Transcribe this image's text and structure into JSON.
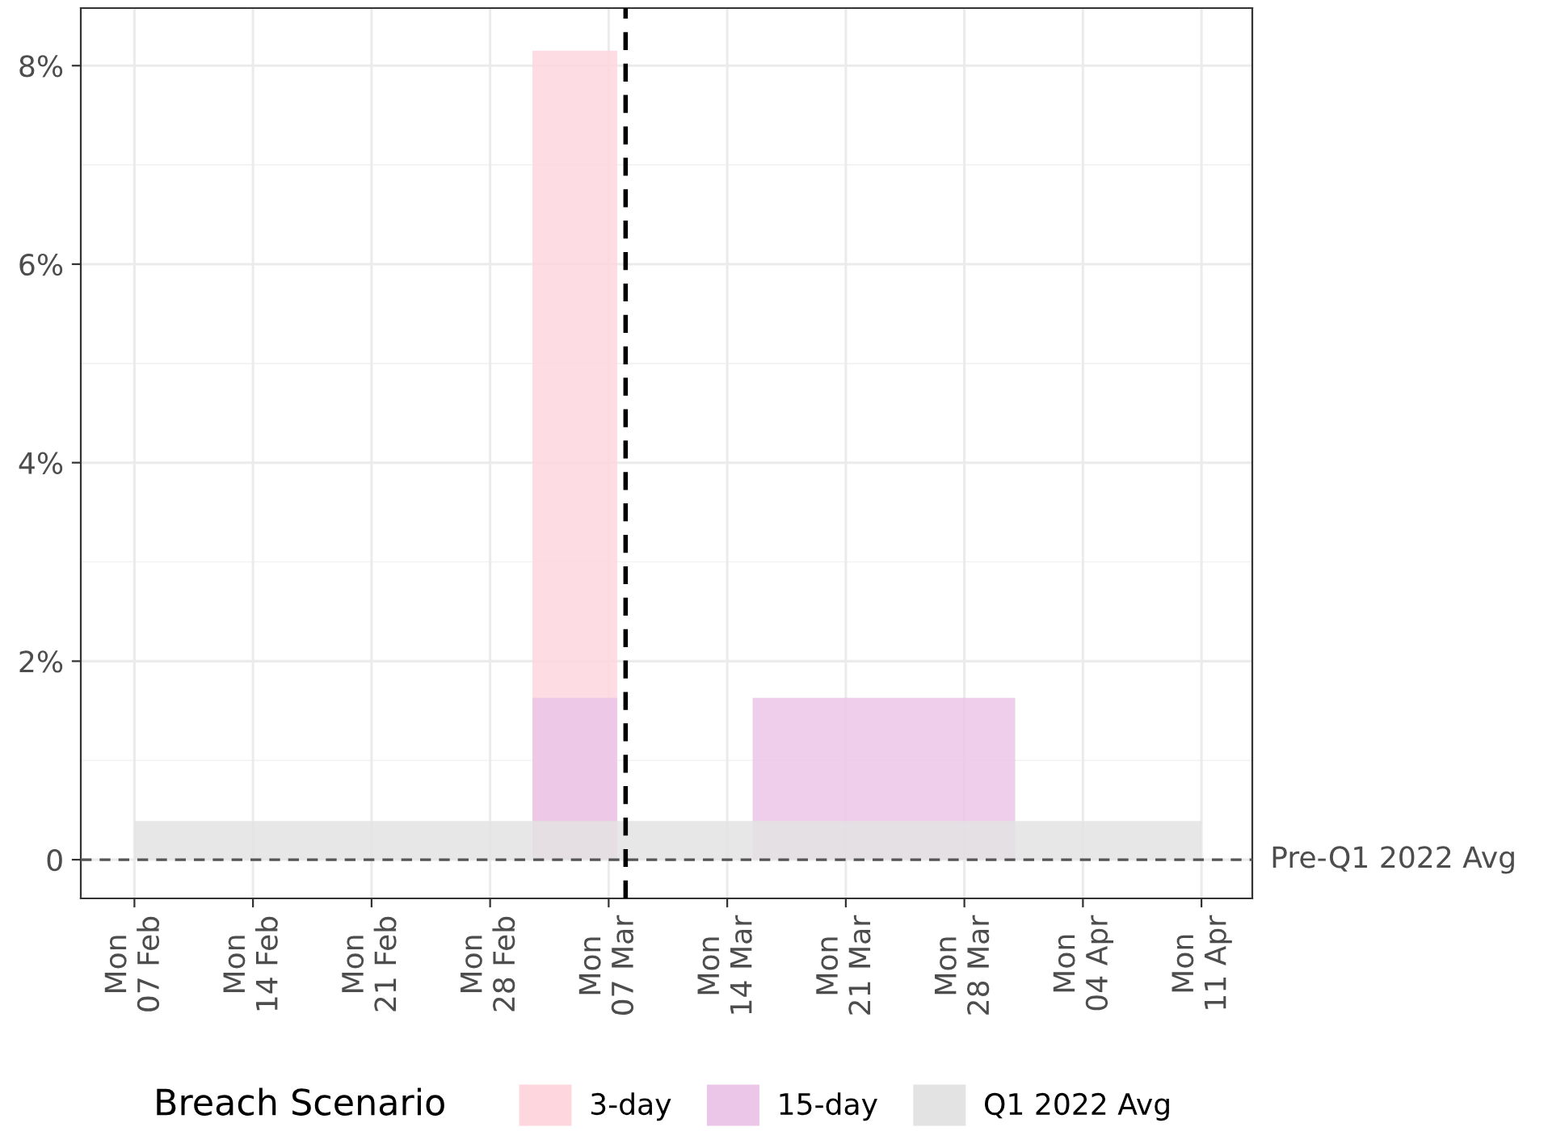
{
  "chart_data": {
    "type": "area",
    "legend_title": "Breach Scenario",
    "series": [
      {
        "name": "3-day",
        "color": "#fdd6de",
        "x": [
          "2022-03-02T12:00",
          "2022-03-02T12:00",
          "2022-03-07T12:00",
          "2022-03-07T12:00"
        ],
        "values": [
          0,
          8.15,
          8.15,
          0
        ]
      },
      {
        "name": "15-day",
        "color": "#ebc6e8",
        "x": [
          "2022-03-02T12:00",
          "2022-03-02T12:00",
          "2022-03-07T12:00",
          "2022-03-07T12:00",
          "2022-03-10",
          "2022-03-15T12:00",
          "2022-03-15T12:00",
          "2022-03-31",
          "2022-03-31"
        ],
        "values": [
          0,
          1.63,
          1.63,
          0,
          null,
          0,
          1.63,
          1.63,
          0
        ]
      },
      {
        "name": "Q1 2022 Avg",
        "color": "#e3e3e3",
        "x": [
          "2022-02-07",
          "2022-02-07",
          "2022-04-11",
          "2022-04-11"
        ],
        "values": [
          0,
          0.39,
          0.39,
          0
        ]
      }
    ],
    "ref_lines": [
      {
        "axis": "y",
        "value": 0,
        "label": "Pre-Q1 2022 Avg",
        "color": "#555555",
        "line_style": "dashed"
      },
      {
        "axis": "x",
        "value": "2022-03-08",
        "label": null,
        "color": "#000000",
        "line_style": "dashed"
      }
    ],
    "xlim": [
      "2022-02-03T20:00",
      "2022-04-14"
    ],
    "xticks": [
      {
        "value": "2022-02-07",
        "label": "Mon\n07 Feb"
      },
      {
        "value": "2022-02-14",
        "label": "Mon\n14 Feb"
      },
      {
        "value": "2022-02-21",
        "label": "Mon\n21 Feb"
      },
      {
        "value": "2022-02-28",
        "label": "Mon\n28 Feb"
      },
      {
        "value": "2022-03-07",
        "label": "Mon\n07 Mar"
      },
      {
        "value": "2022-03-14",
        "label": "Mon\n14 Mar"
      },
      {
        "value": "2022-03-21",
        "label": "Mon\n21 Mar"
      },
      {
        "value": "2022-03-28",
        "label": "Mon\n28 Mar"
      },
      {
        "value": "2022-04-04",
        "label": "Mon\n04 Apr"
      },
      {
        "value": "2022-04-11",
        "label": "Mon\n11 Apr"
      }
    ],
    "ylim": [
      -0.39,
      8.58
    ],
    "yticks": [
      0,
      {
        "value": 2,
        "label": "2%"
      },
      {
        "value": 4,
        "label": "4%"
      },
      {
        "value": 6,
        "label": "6%"
      },
      {
        "value": 8,
        "label": "8%"
      }
    ],
    "grid": true,
    "legend": "bottom"
  }
}
